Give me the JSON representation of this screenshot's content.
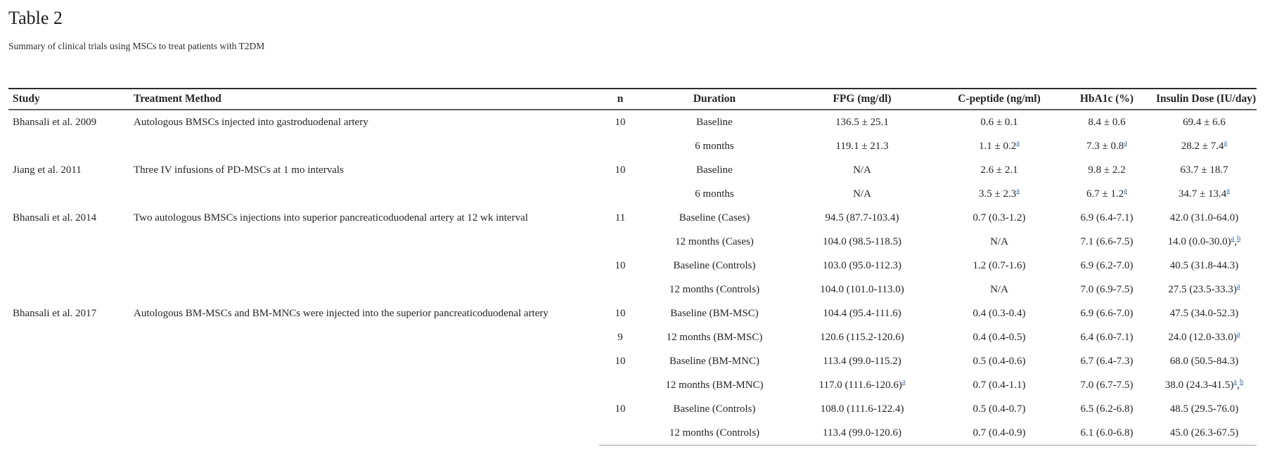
{
  "page": {
    "title": "Table 2",
    "caption": "Summary of clinical trials using MSCs to treat patients with T2DM"
  },
  "table": {
    "columns": [
      "Study",
      "Treatment Method",
      "n",
      "Duration",
      "FPG (mg/dl)",
      "C-peptide (ng/ml)",
      "HbA1c (%)",
      "Insulin Dose (IU/day)"
    ],
    "footnote_link_color": "#3c6d9e",
    "groups": [
      {
        "study": "Bhansali et al. 2009",
        "treatment": "Autologous BMSCs injected into gastroduodenal artery",
        "rows": [
          {
            "cells": [
              "10",
              "Baseline",
              "136.5 ± 25.1",
              "0.6 ± 0.1",
              "8.4 ± 0.6",
              "69.4 ± 6.6"
            ]
          },
          {
            "cells": [
              "",
              "6 months",
              "119.1 ± 21.3",
              "1.1 ± 0.2^a",
              "7.3 ± 0.8^a",
              "28.2 ± 7.4^a"
            ]
          }
        ]
      },
      {
        "study": "Jiang et al. 2011",
        "treatment": "Three IV infusions of PD-MSCs at 1 mo intervals",
        "rows": [
          {
            "cells": [
              "10",
              "Baseline",
              "N/A",
              "2.6 ± 2.1",
              "9.8 ± 2.2",
              "63.7 ± 18.7"
            ]
          },
          {
            "cells": [
              "",
              "6 months",
              "N/A",
              "3.5 ± 2.3^a",
              "6.7 ± 1.2^a",
              "34.7 ± 13.4^a"
            ]
          }
        ]
      },
      {
        "study": "Bhansali et al. 2014",
        "treatment": "Two autologous BMSCs injections into superior pancreaticoduodenal artery at 12 wk interval",
        "rows": [
          {
            "cells": [
              "11",
              "Baseline (Cases)",
              "94.5 (87.7-103.4)",
              "0.7 (0.3-1.2)",
              "6.9 (6.4-7.1)",
              "42.0 (31.0-64.0)"
            ]
          },
          {
            "cells": [
              "",
              "12 months (Cases)",
              "104.0 (98.5-118.5)",
              "N/A",
              "7.1 (6.6-7.5)",
              "14.0 (0.0-30.0)^a,b"
            ]
          },
          {
            "cells": [
              "10",
              "Baseline (Controls)",
              "103.0 (95.0-112.3)",
              "1.2 (0.7-1.6)",
              "6.9 (6.2-7.0)",
              "40.5 (31.8-44.3)"
            ]
          },
          {
            "cells": [
              "",
              "12 months (Controls)",
              "104.0 (101.0-113.0)",
              "N/A",
              "7.0 (6.9-7.5)",
              "27.5 (23.5-33.3)^a"
            ]
          }
        ]
      },
      {
        "study": "Bhansali et al. 2017",
        "treatment": "Autologous BM-MSCs and BM-MNCs were injected into the superior pancreaticoduodenal artery",
        "rows": [
          {
            "cells": [
              "10",
              "Baseline (BM-MSC)",
              "104.4 (95.4-111.6)",
              "0.4 (0.3-0.4)",
              "6.9 (6.6-7.0)",
              "47.5 (34.0-52.3)"
            ]
          },
          {
            "cells": [
              "9",
              "12 months (BM-MSC)",
              "120.6 (115.2-120.6)",
              "0.4 (0.4-0.5)",
              "6.4 (6.0-7.1)",
              "24.0 (12.0-33.0)^a"
            ]
          },
          {
            "cells": [
              "10",
              "Baseline (BM-MNC)",
              "113.4 (99.0-115.2)",
              "0.5 (0.4-0.6)",
              "6.7 (6.4-7.3)",
              "68.0 (50.5-84.3)"
            ]
          },
          {
            "cells": [
              "",
              "12 months (BM-MNC)",
              "117.0 (111.6-120.6)^a",
              "0.7 (0.4-1.1)",
              "7.0 (6.7-7.5)",
              "38.0 (24.3-41.5)^a,b"
            ]
          },
          {
            "cells": [
              "10",
              "Baseline (Controls)",
              "108.0 (111.6-122.4)",
              "0.5 (0.4-0.7)",
              "6.5 (6.2-6.8)",
              "48.5 (29.5-76.0)"
            ]
          },
          {
            "cells": [
              "",
              "12 months (Controls)",
              "113.4 (99.0-120.6)",
              "0.7 (0.4-0.9)",
              "6.1 (6.0-6.8)",
              "45.0 (26.3-67.5)"
            ]
          }
        ]
      }
    ]
  }
}
